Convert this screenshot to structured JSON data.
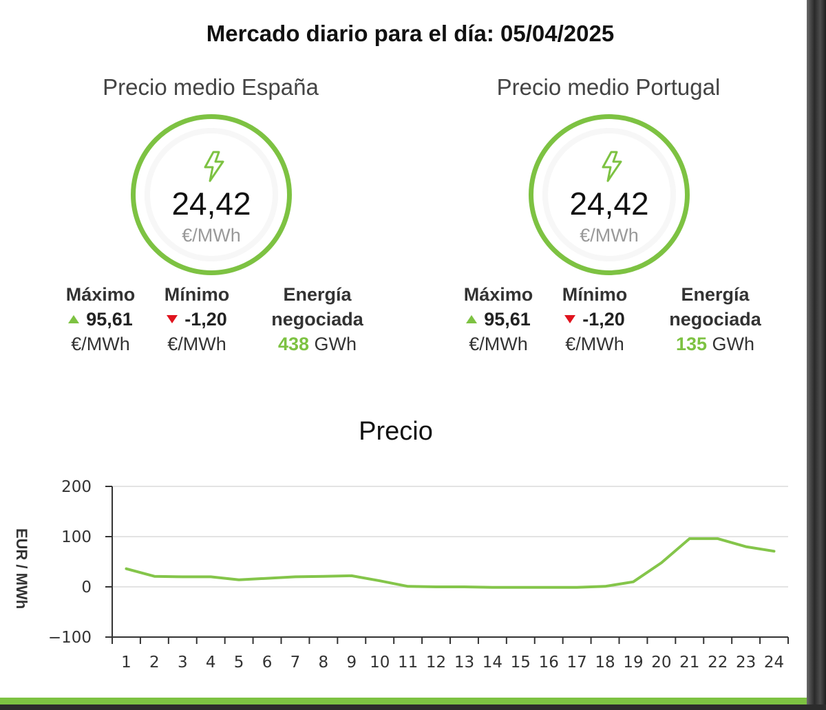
{
  "title": "Mercado diario para el día: 05/04/2025",
  "spain": {
    "title": "Precio medio España",
    "price": "24,42",
    "unit": "€/MWh",
    "max_label": "Máximo",
    "max_value": "95,61",
    "max_unit": "€/MWh",
    "min_label": "Mínimo",
    "min_value": "-1,20",
    "min_unit": "€/MWh",
    "energy_label_1": "Energía",
    "energy_label_2": "negociada",
    "energy_value": "438",
    "energy_unit": "GWh"
  },
  "portugal": {
    "title": "Precio medio Portugal",
    "price": "24,42",
    "unit": "€/MWh",
    "max_label": "Máximo",
    "max_value": "95,61",
    "max_unit": "€/MWh",
    "min_label": "Mínimo",
    "min_value": "-1,20",
    "min_unit": "€/MWh",
    "energy_label_1": "Energía",
    "energy_label_2": "negociada",
    "energy_value": "135",
    "energy_unit": "GWh"
  },
  "colors": {
    "accent": "#7dc242",
    "down": "#e0141e"
  },
  "icons": [
    "lightning-bolt-icon",
    "triangle-up-icon",
    "triangle-down-icon"
  ],
  "chart_data": {
    "type": "line",
    "title": "Precio",
    "xlabel": "",
    "ylabel": "EUR / MWh",
    "categories": [
      "1",
      "2",
      "3",
      "4",
      "5",
      "6",
      "7",
      "8",
      "9",
      "10",
      "11",
      "12",
      "13",
      "14",
      "15",
      "16",
      "17",
      "18",
      "19",
      "20",
      "21",
      "22",
      "23",
      "24"
    ],
    "series": [
      {
        "values": [
          36,
          21,
          20,
          20,
          14,
          17,
          20,
          21,
          22,
          12,
          1,
          0,
          0,
          -1,
          -1,
          -1,
          -1,
          1,
          10,
          48,
          96,
          96,
          80,
          71
        ]
      }
    ],
    "ylim": [
      -100,
      200
    ],
    "yticks": [
      "200",
      "100",
      "0",
      "−100"
    ],
    "grid": true
  }
}
